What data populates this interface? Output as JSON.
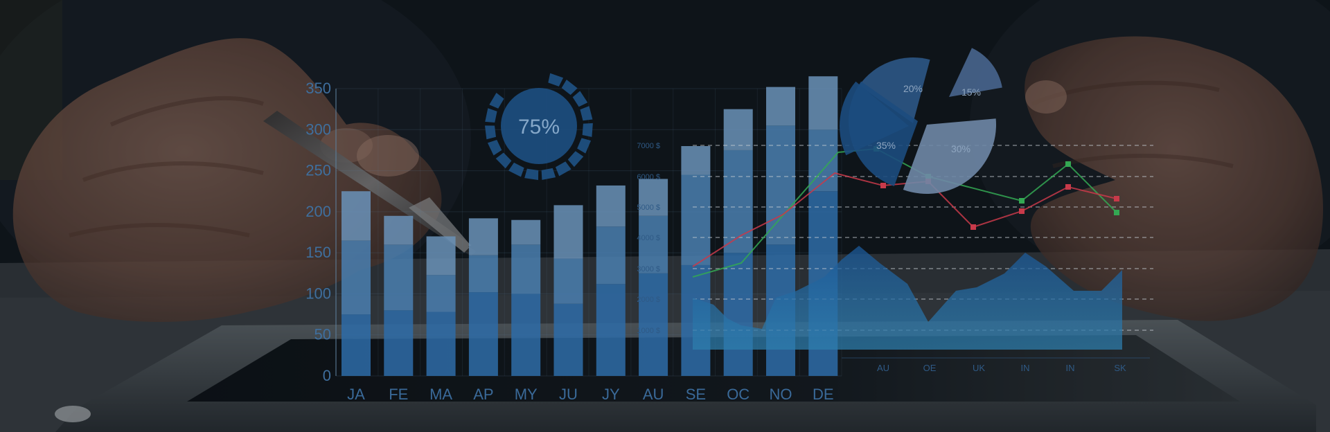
{
  "chart_data": [
    {
      "type": "bar",
      "categories": [
        "JA",
        "FE",
        "MA",
        "AP",
        "MY",
        "JU",
        "JY",
        "AU",
        "SE",
        "OC",
        "NO",
        "DE"
      ],
      "y_ticks": [
        "350",
        "300",
        "250",
        "200",
        "150",
        "100",
        "50",
        "0"
      ],
      "ylim": [
        0,
        350
      ],
      "series": [
        {
          "values": [
            75,
            80,
            78,
            102,
            100,
            88,
            112,
            125,
            135,
            150,
            160,
            225
          ]
        },
        {
          "values": [
            90,
            80,
            45,
            45,
            60,
            55,
            70,
            70,
            110,
            125,
            145,
            75
          ]
        },
        {
          "values": [
            60,
            35,
            47,
            45,
            30,
            65,
            50,
            45,
            35,
            50,
            47,
            65
          ]
        }
      ],
      "totals": [
        225,
        195,
        170,
        192,
        190,
        208,
        232,
        240,
        280,
        325,
        352,
        365
      ],
      "bar_color": "#2e6ca8"
    },
    {
      "type": "pie",
      "slices": [
        {
          "label": "20%",
          "value": 20
        },
        {
          "label": "15%",
          "value": 15
        },
        {
          "label": "30%",
          "value": 30
        },
        {
          "label": "35%",
          "value": 35
        }
      ]
    },
    {
      "type": "line",
      "y_ticks": [
        "7000 $",
        "6000 $",
        "5000 $",
        "4000 $",
        "3000 $",
        "2000 $",
        "1000 $"
      ],
      "categories": [
        "AU",
        "OE",
        "UK",
        "IN",
        "IN",
        "SK"
      ],
      "series": [
        {
          "color": "#34a853",
          "values": [
            6800,
            6100,
            5500,
            5800,
            6400,
            5300
          ]
        },
        {
          "color": "#c83a4a",
          "values": [
            6000,
            6200,
            4600,
            5200,
            6100,
            5600
          ]
        }
      ]
    },
    {
      "type": "gauge",
      "label": "75%",
      "value": 75
    }
  ],
  "colors": {
    "overlay_blue": "#2e6ca8",
    "light_blue": "#7fa9d6",
    "area_fill": "#1f5f9c"
  }
}
